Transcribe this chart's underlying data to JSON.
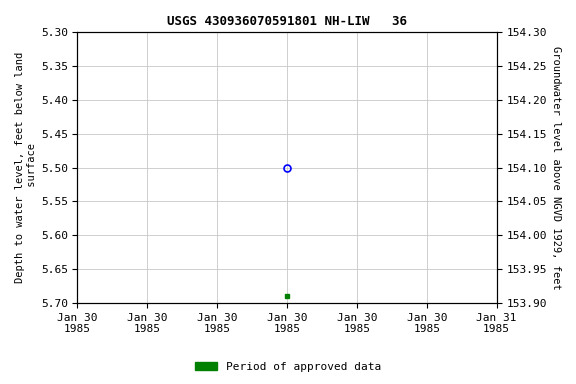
{
  "title": "USGS 430936070591801 NH-LIW   36",
  "ylabel_left": "Depth to water level, feet below land\n surface",
  "ylabel_right": "Groundwater level above NGVD 1929, feet",
  "ylim_left": [
    5.7,
    5.3
  ],
  "ylim_right": [
    153.9,
    154.3
  ],
  "yticks_left": [
    5.3,
    5.35,
    5.4,
    5.45,
    5.5,
    5.55,
    5.6,
    5.65,
    5.7
  ],
  "yticks_right": [
    154.3,
    154.25,
    154.2,
    154.15,
    154.1,
    154.05,
    154.0,
    153.95,
    153.9
  ],
  "data_point_unapproved": {
    "date": "1985-01-30",
    "depth": 5.5
  },
  "data_point_approved": {
    "date": "1985-01-30",
    "depth": 5.69
  },
  "grid_color": "#c8c8c8",
  "background_color": "#ffffff",
  "approved_color": "#008000",
  "unapproved_color": "#0000ff",
  "legend_label": "Period of approved data",
  "xstart_num": 0,
  "xend_num": 2,
  "unapproved_x": 1.0,
  "approved_x": 1.0,
  "xtick_positions": [
    0.0,
    0.333,
    0.667,
    1.0,
    1.333,
    1.667,
    2.0
  ],
  "xtick_labels": [
    "Jan 30\n1985",
    "Jan 30\n1985",
    "Jan 30\n1985",
    "Jan 30\n1985",
    "Jan 30\n1985",
    "Jan 30\n1985",
    "Jan 31\n1985"
  ],
  "font_size_ticks": 8,
  "font_size_title": 9,
  "font_size_label": 7.5,
  "font_size_legend": 8
}
